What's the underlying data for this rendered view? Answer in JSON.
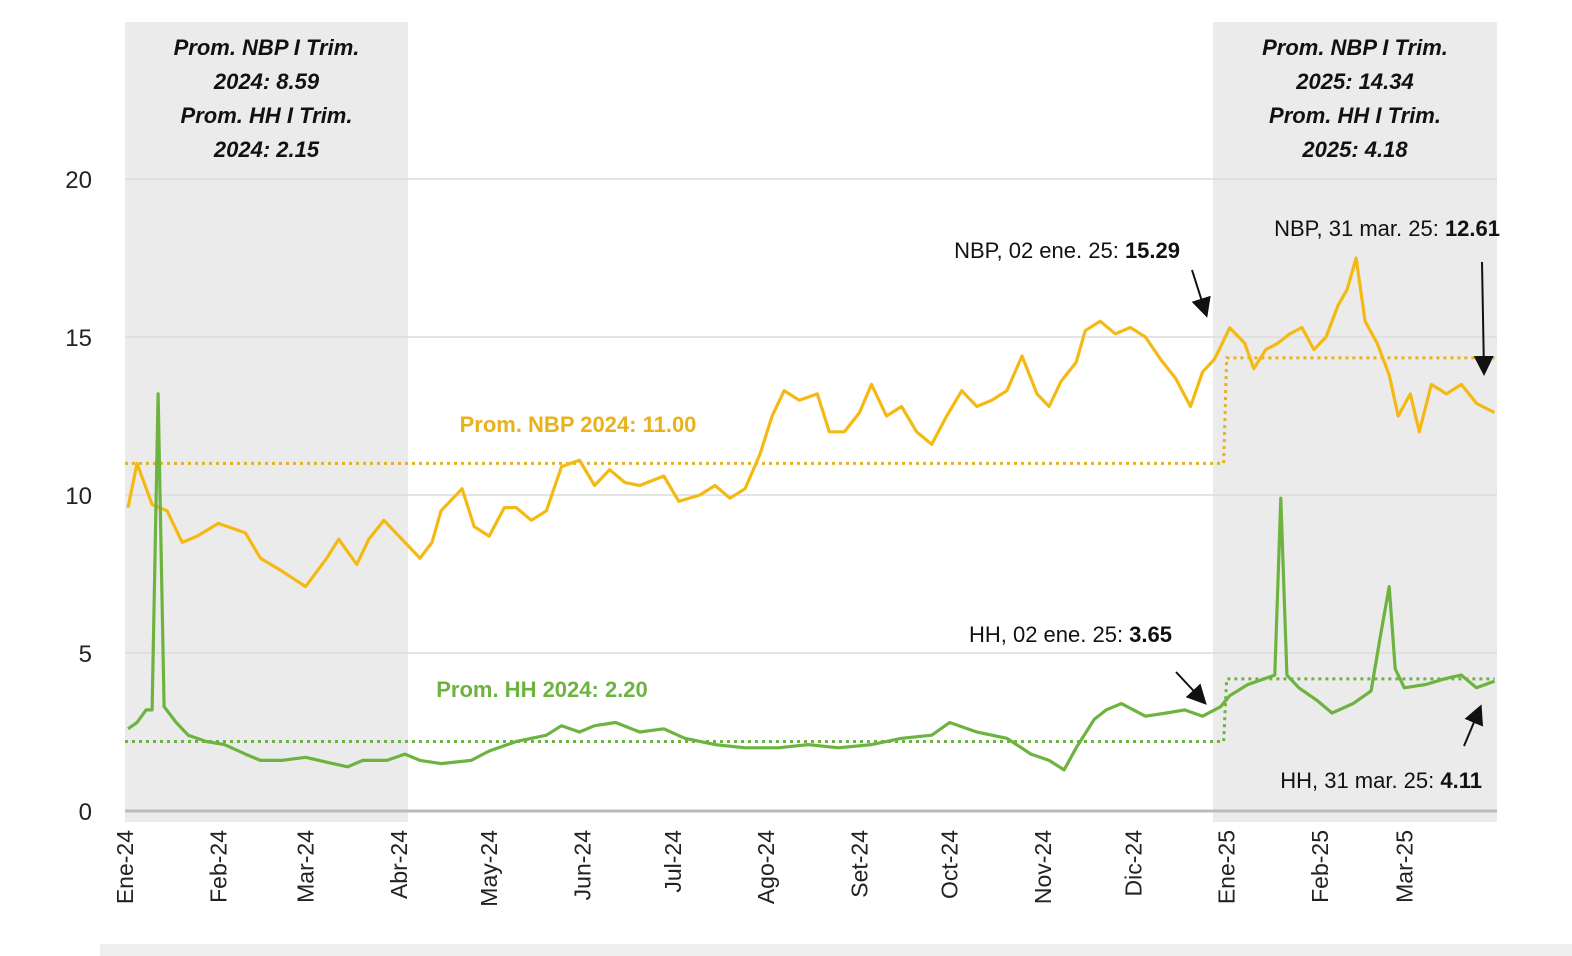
{
  "chart_data": {
    "type": "line",
    "title": "",
    "xlabel": "",
    "ylabel": "",
    "ylim": [
      0,
      20
    ],
    "yticks": [
      "0",
      "5",
      "10",
      "15",
      "20"
    ],
    "xticks": [
      {
        "label": "Ene-24",
        "date": "2024-01-01"
      },
      {
        "label": "Feb-24",
        "date": "2024-02-01"
      },
      {
        "label": "Mar-24",
        "date": "2024-03-01"
      },
      {
        "label": "Abr-24",
        "date": "2024-04-01"
      },
      {
        "label": "May-24",
        "date": "2024-05-01"
      },
      {
        "label": "Jun-24",
        "date": "2024-06-01"
      },
      {
        "label": "Jul-24",
        "date": "2024-07-01"
      },
      {
        "label": "Ago-24",
        "date": "2024-08-01"
      },
      {
        "label": "Set-24",
        "date": "2024-09-01"
      },
      {
        "label": "Oct-24",
        "date": "2024-10-01"
      },
      {
        "label": "Nov-24",
        "date": "2024-11-01"
      },
      {
        "label": "Dic-24",
        "date": "2024-12-01"
      },
      {
        "label": "Ene-25",
        "date": "2025-01-01"
      },
      {
        "label": "Feb-25",
        "date": "2025-02-01"
      },
      {
        "label": "Mar-25",
        "date": "2025-03-01"
      }
    ],
    "grid": true,
    "shaded_periods": [
      {
        "from": "2024-01-01",
        "to": "2024-04-03",
        "lines": [
          "Prom. NBP I Trim.",
          "2024: 8.59",
          "Prom. HH I Trim.",
          "2024: 2.15"
        ]
      },
      {
        "from": "2024-12-29",
        "to": "2025-03-31",
        "lines": [
          "Prom. NBP I Trim.",
          "2025: 14.34",
          "Prom. HH I Trim.",
          "2025: 4.18"
        ]
      }
    ],
    "averages": [
      {
        "series": "NBP",
        "label": "Prom. NBP 2024: 11.00",
        "segments": [
          {
            "from": "2024-01-01",
            "to": "2024-12-31",
            "value": 11.0
          },
          {
            "from": "2025-01-01",
            "to": "2025-03-31",
            "value": 14.34
          }
        ]
      },
      {
        "series": "HH",
        "label": "Prom. HH 2024: 2.20",
        "segments": [
          {
            "from": "2024-01-01",
            "to": "2024-12-31",
            "value": 2.2
          },
          {
            "from": "2025-01-01",
            "to": "2025-03-31",
            "value": 4.18
          }
        ]
      }
    ],
    "annotations": [
      {
        "series": "NBP",
        "prefix": "NBP, 02 ene. 25: ",
        "value": "15.29",
        "date": "2025-01-02"
      },
      {
        "series": "NBP",
        "prefix": "NBP,  31 mar. 25: ",
        "value": "12.61",
        "date": "2025-03-31"
      },
      {
        "series": "HH",
        "prefix": "HH, 02 ene. 25: ",
        "value": "3.65",
        "date": "2025-01-02"
      },
      {
        "series": "HH",
        "prefix": "HH, 31 mar. 25: ",
        "value": "4.11",
        "date": "2025-03-31"
      }
    ],
    "series": [
      {
        "name": "NBP",
        "color": "#F5B914",
        "points": [
          [
            "2024-01-02",
            9.6
          ],
          [
            "2024-01-05",
            11.0
          ],
          [
            "2024-01-10",
            9.7
          ],
          [
            "2024-01-15",
            9.5
          ],
          [
            "2024-01-20",
            8.5
          ],
          [
            "2024-01-25",
            8.7
          ],
          [
            "2024-02-01",
            9.1
          ],
          [
            "2024-02-10",
            8.8
          ],
          [
            "2024-02-15",
            8.0
          ],
          [
            "2024-02-22",
            7.6
          ],
          [
            "2024-03-01",
            7.1
          ],
          [
            "2024-03-08",
            8.0
          ],
          [
            "2024-03-12",
            8.6
          ],
          [
            "2024-03-18",
            7.8
          ],
          [
            "2024-03-22",
            8.6
          ],
          [
            "2024-03-27",
            9.2
          ],
          [
            "2024-04-03",
            8.5
          ],
          [
            "2024-04-08",
            8.0
          ],
          [
            "2024-04-12",
            8.5
          ],
          [
            "2024-04-15",
            9.5
          ],
          [
            "2024-04-22",
            10.2
          ],
          [
            "2024-04-26",
            9.0
          ],
          [
            "2024-05-01",
            8.7
          ],
          [
            "2024-05-06",
            9.6
          ],
          [
            "2024-05-10",
            9.6
          ],
          [
            "2024-05-15",
            9.2
          ],
          [
            "2024-05-20",
            9.5
          ],
          [
            "2024-05-25",
            10.9
          ],
          [
            "2024-05-31",
            11.1
          ],
          [
            "2024-06-05",
            10.3
          ],
          [
            "2024-06-10",
            10.8
          ],
          [
            "2024-06-15",
            10.4
          ],
          [
            "2024-06-20",
            10.3
          ],
          [
            "2024-06-28",
            10.6
          ],
          [
            "2024-07-03",
            9.8
          ],
          [
            "2024-07-10",
            10.0
          ],
          [
            "2024-07-15",
            10.3
          ],
          [
            "2024-07-20",
            9.9
          ],
          [
            "2024-07-25",
            10.2
          ],
          [
            "2024-07-30",
            11.3
          ],
          [
            "2024-08-03",
            12.5
          ],
          [
            "2024-08-07",
            13.3
          ],
          [
            "2024-08-12",
            13.0
          ],
          [
            "2024-08-18",
            13.2
          ],
          [
            "2024-08-22",
            12.0
          ],
          [
            "2024-08-27",
            12.0
          ],
          [
            "2024-09-01",
            12.6
          ],
          [
            "2024-09-05",
            13.5
          ],
          [
            "2024-09-10",
            12.5
          ],
          [
            "2024-09-15",
            12.8
          ],
          [
            "2024-09-20",
            12.0
          ],
          [
            "2024-09-25",
            11.6
          ],
          [
            "2024-09-30",
            12.5
          ],
          [
            "2024-10-05",
            13.3
          ],
          [
            "2024-10-10",
            12.8
          ],
          [
            "2024-10-15",
            13.0
          ],
          [
            "2024-10-20",
            13.3
          ],
          [
            "2024-10-25",
            14.4
          ],
          [
            "2024-10-30",
            13.2
          ],
          [
            "2024-11-03",
            12.8
          ],
          [
            "2024-11-07",
            13.6
          ],
          [
            "2024-11-12",
            14.2
          ],
          [
            "2024-11-15",
            15.2
          ],
          [
            "2024-11-20",
            15.5
          ],
          [
            "2024-11-25",
            15.1
          ],
          [
            "2024-11-30",
            15.3
          ],
          [
            "2024-12-05",
            15.0
          ],
          [
            "2024-12-10",
            14.3
          ],
          [
            "2024-12-15",
            13.7
          ],
          [
            "2024-12-20",
            12.8
          ],
          [
            "2024-12-24",
            13.9
          ],
          [
            "2024-12-28",
            14.3
          ],
          [
            "2025-01-02",
            15.29
          ],
          [
            "2025-01-07",
            14.8
          ],
          [
            "2025-01-10",
            14.0
          ],
          [
            "2025-01-14",
            14.6
          ],
          [
            "2025-01-18",
            14.8
          ],
          [
            "2025-01-22",
            15.1
          ],
          [
            "2025-01-26",
            15.3
          ],
          [
            "2025-01-30",
            14.6
          ],
          [
            "2025-02-03",
            15.0
          ],
          [
            "2025-02-07",
            16.0
          ],
          [
            "2025-02-10",
            16.5
          ],
          [
            "2025-02-13",
            17.5
          ],
          [
            "2025-02-16",
            15.5
          ],
          [
            "2025-02-20",
            14.8
          ],
          [
            "2025-02-24",
            13.8
          ],
          [
            "2025-02-27",
            12.5
          ],
          [
            "2025-03-03",
            13.2
          ],
          [
            "2025-03-06",
            12.0
          ],
          [
            "2025-03-10",
            13.5
          ],
          [
            "2025-03-15",
            13.2
          ],
          [
            "2025-03-20",
            13.5
          ],
          [
            "2025-03-25",
            12.9
          ],
          [
            "2025-03-31",
            12.61
          ]
        ]
      },
      {
        "name": "HH",
        "color": "#6DB33F",
        "points": [
          [
            "2024-01-02",
            2.6
          ],
          [
            "2024-01-05",
            2.8
          ],
          [
            "2024-01-08",
            3.2
          ],
          [
            "2024-01-10",
            3.2
          ],
          [
            "2024-01-12",
            13.2
          ],
          [
            "2024-01-14",
            3.3
          ],
          [
            "2024-01-18",
            2.8
          ],
          [
            "2024-01-22",
            2.4
          ],
          [
            "2024-01-28",
            2.2
          ],
          [
            "2024-02-03",
            2.1
          ],
          [
            "2024-02-10",
            1.8
          ],
          [
            "2024-02-15",
            1.6
          ],
          [
            "2024-02-22",
            1.6
          ],
          [
            "2024-03-01",
            1.7
          ],
          [
            "2024-03-10",
            1.5
          ],
          [
            "2024-03-15",
            1.4
          ],
          [
            "2024-03-20",
            1.6
          ],
          [
            "2024-03-28",
            1.6
          ],
          [
            "2024-04-03",
            1.8
          ],
          [
            "2024-04-08",
            1.6
          ],
          [
            "2024-04-15",
            1.5
          ],
          [
            "2024-04-25",
            1.6
          ],
          [
            "2024-05-01",
            1.9
          ],
          [
            "2024-05-10",
            2.2
          ],
          [
            "2024-05-20",
            2.4
          ],
          [
            "2024-05-25",
            2.7
          ],
          [
            "2024-05-31",
            2.5
          ],
          [
            "2024-06-05",
            2.7
          ],
          [
            "2024-06-12",
            2.8
          ],
          [
            "2024-06-20",
            2.5
          ],
          [
            "2024-06-28",
            2.6
          ],
          [
            "2024-07-05",
            2.3
          ],
          [
            "2024-07-15",
            2.1
          ],
          [
            "2024-07-25",
            2.0
          ],
          [
            "2024-08-05",
            2.0
          ],
          [
            "2024-08-15",
            2.1
          ],
          [
            "2024-08-25",
            2.0
          ],
          [
            "2024-09-05",
            2.1
          ],
          [
            "2024-09-15",
            2.3
          ],
          [
            "2024-09-25",
            2.4
          ],
          [
            "2024-10-01",
            2.8
          ],
          [
            "2024-10-10",
            2.5
          ],
          [
            "2024-10-20",
            2.3
          ],
          [
            "2024-10-28",
            1.8
          ],
          [
            "2024-11-03",
            1.6
          ],
          [
            "2024-11-08",
            1.3
          ],
          [
            "2024-11-12",
            2.0
          ],
          [
            "2024-11-18",
            2.9
          ],
          [
            "2024-11-22",
            3.2
          ],
          [
            "2024-11-27",
            3.4
          ],
          [
            "2024-12-05",
            3.0
          ],
          [
            "2024-12-12",
            3.1
          ],
          [
            "2024-12-18",
            3.2
          ],
          [
            "2024-12-24",
            3.0
          ],
          [
            "2024-12-30",
            3.3
          ],
          [
            "2025-01-02",
            3.65
          ],
          [
            "2025-01-08",
            4.0
          ],
          [
            "2025-01-14",
            4.2
          ],
          [
            "2025-01-17",
            4.3
          ],
          [
            "2025-01-19",
            9.9
          ],
          [
            "2025-01-21",
            4.3
          ],
          [
            "2025-01-25",
            3.9
          ],
          [
            "2025-01-31",
            3.5
          ],
          [
            "2025-02-05",
            3.1
          ],
          [
            "2025-02-12",
            3.4
          ],
          [
            "2025-02-18",
            3.8
          ],
          [
            "2025-02-21",
            5.5
          ],
          [
            "2025-02-24",
            7.1
          ],
          [
            "2025-02-26",
            4.5
          ],
          [
            "2025-03-01",
            3.9
          ],
          [
            "2025-03-08",
            4.0
          ],
          [
            "2025-03-15",
            4.2
          ],
          [
            "2025-03-20",
            4.3
          ],
          [
            "2025-03-25",
            3.9
          ],
          [
            "2025-03-31",
            4.11
          ]
        ]
      }
    ]
  }
}
